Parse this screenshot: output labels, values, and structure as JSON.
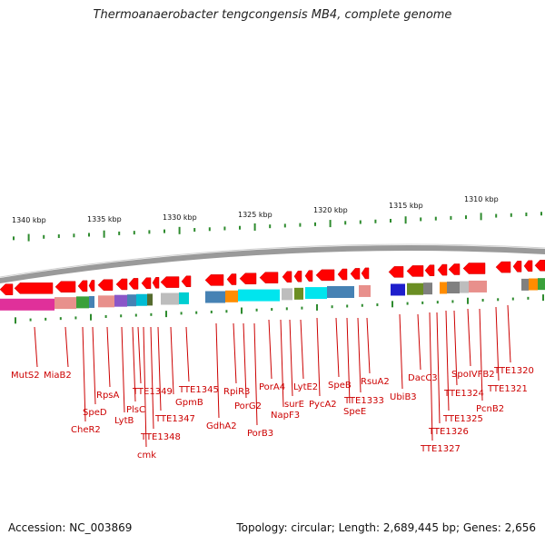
{
  "title": "Thermoanaerobacter tengcongensis MB4, complete genome",
  "footer": {
    "accession": "Accession: NC_003869",
    "info": "Topology: circular; Length: 2,689,445 bp; Genes: 2,656"
  },
  "kbp_ticks": [
    "1340 kbp",
    "1335 kbp",
    "1330 kbp",
    "1325 kbp",
    "1320 kbp",
    "1315 kbp",
    "1310 kbp"
  ],
  "genes": [
    "MutS2",
    "MiaB2",
    "CheR2",
    "SpeD",
    "RpsA",
    "LytB",
    "PlsC",
    "cmk",
    "TTE1349",
    "TTE1348",
    "TTE1347",
    "GpmB",
    "TTE1345",
    "GdhA2",
    "RpiR3",
    "PorG2",
    "PorB3",
    "PorA4",
    "NapF3",
    "surE",
    "LytE2",
    "PycA2",
    "SpeB",
    "SpeE",
    "TTE1333",
    "RsuA2",
    "UbiB3",
    "DacC3",
    "TTE1327",
    "TTE1326",
    "TTE1325",
    "TTE1324",
    "SpoIVFB2",
    "PcnB2",
    "TTE1321",
    "TTE1320"
  ],
  "colors": {
    "arrow": "#ff0000",
    "label": "#cc0000",
    "tick": "#2e8b2e",
    "backbone": "#888888"
  }
}
